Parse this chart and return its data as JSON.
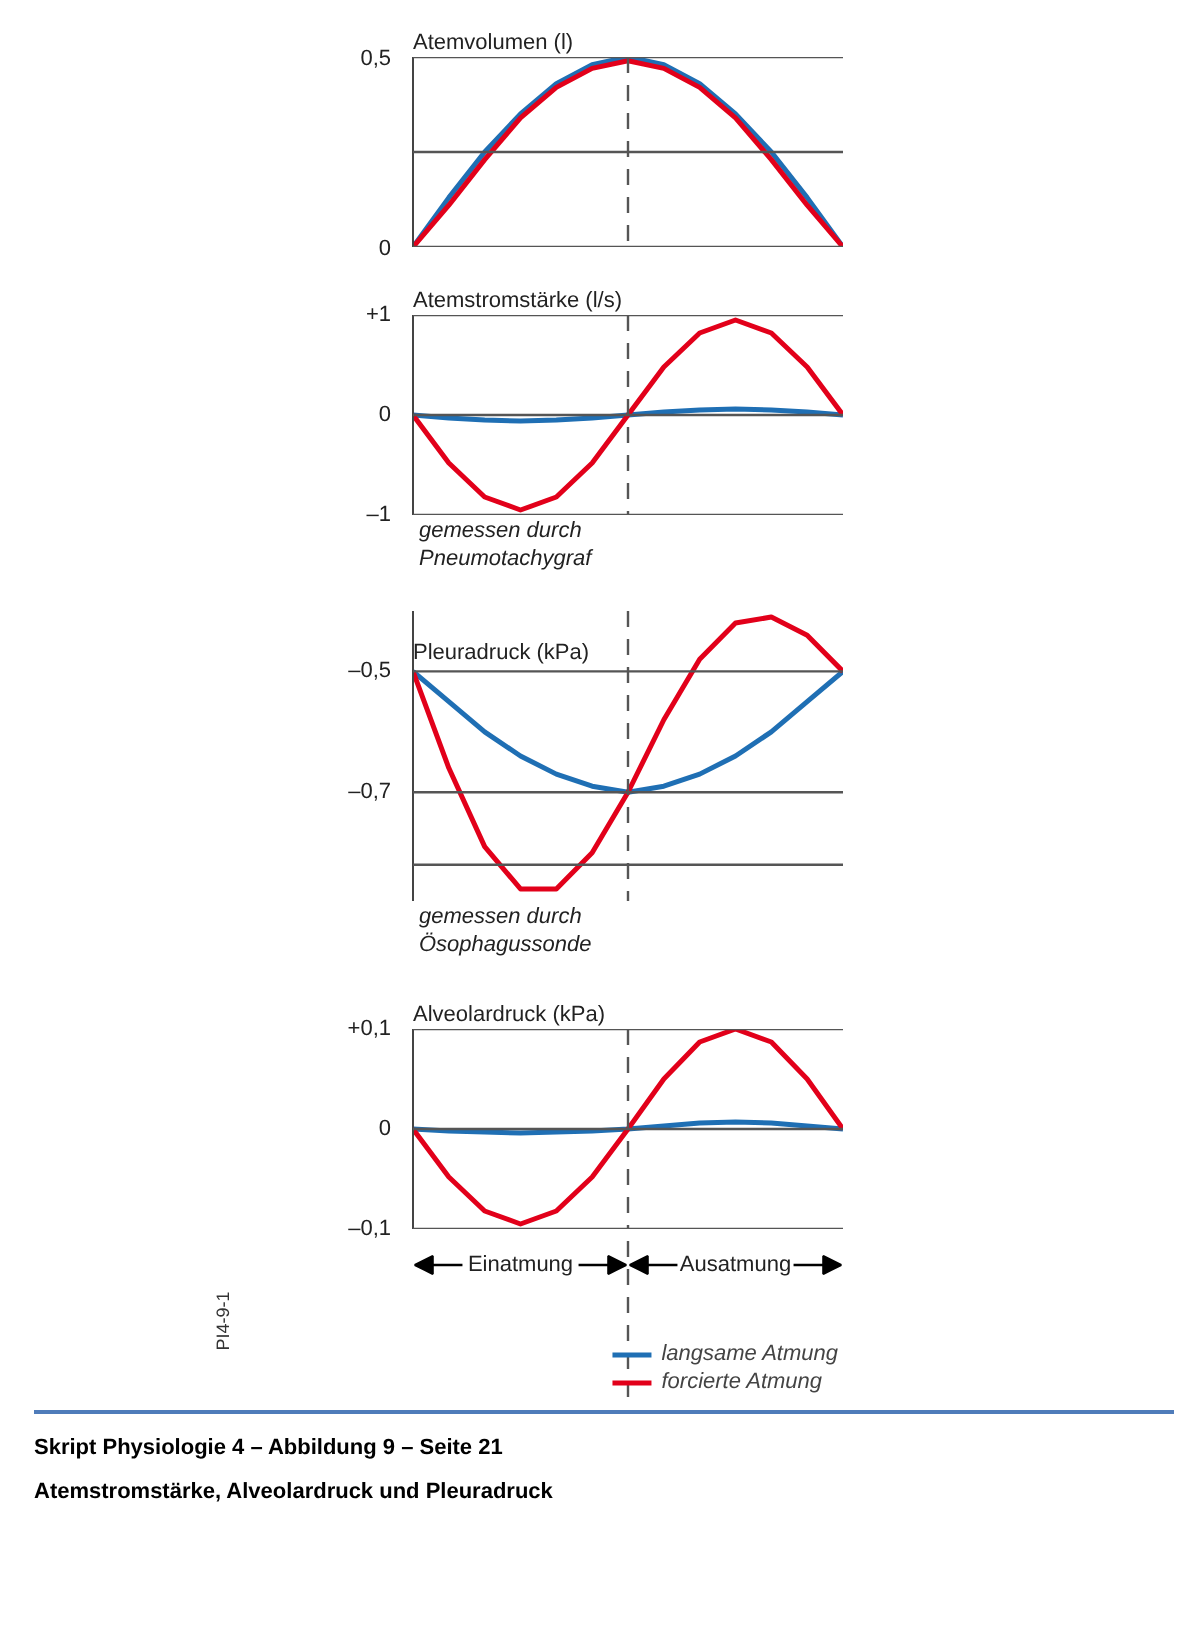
{
  "chart_data": [
    {
      "type": "line",
      "ylabel": "Atemvolumen (l)",
      "categories": [
        null,
        null,
        null,
        null,
        null,
        null,
        null,
        null,
        null,
        null,
        null,
        null,
        null
      ],
      "ylim": [
        0,
        0.5
      ],
      "yticks": [
        0,
        {
          "value": 0.5,
          "label": "0,5"
        }
      ],
      "grid": "y",
      "tick_labels": "y",
      "ref_lines": [
        {
          "axis": "y",
          "value": 0.25,
          "color": "#555555"
        }
      ],
      "series": [
        {
          "color": "#1f6fb4",
          "values": [
            0,
            0.13,
            0.25,
            0.35,
            0.43,
            0.48,
            0.5,
            0.48,
            0.43,
            0.35,
            0.25,
            0.13,
            0
          ]
        },
        {
          "color": "#e2001a",
          "values": [
            0,
            0.11,
            0.23,
            0.34,
            0.42,
            0.47,
            0.49,
            0.47,
            0.42,
            0.34,
            0.23,
            0.11,
            0
          ]
        }
      ]
    },
    {
      "type": "line",
      "ylabel": "Atemstromstärke (l/s)",
      "categories": [
        null,
        null,
        null,
        null,
        null,
        null,
        null,
        null,
        null,
        null,
        null,
        null,
        null
      ],
      "ylim": [
        -1,
        1
      ],
      "yticks": [
        {
          "value": -1,
          "label": "–1"
        },
        0,
        {
          "value": 1,
          "label": "+1"
        }
      ],
      "tick_labels": "y",
      "ref_lines": [
        {
          "axis": "y",
          "value": 1,
          "color": "#555555"
        },
        {
          "axis": "y",
          "value": 0,
          "color": "#555555"
        },
        {
          "axis": "y",
          "value": -1,
          "color": "#555555"
        }
      ],
      "series": [
        {
          "color": "#1f6fb4",
          "values": [
            0,
            -0.03,
            -0.05,
            -0.06,
            -0.05,
            -0.03,
            0,
            0.03,
            0.05,
            0.06,
            0.05,
            0.03,
            0
          ]
        },
        {
          "color": "#e2001a",
          "values": [
            0,
            -0.48,
            -0.82,
            -0.95,
            -0.82,
            -0.48,
            0,
            0.48,
            0.82,
            0.95,
            0.82,
            0.48,
            0
          ]
        }
      ],
      "annotations": [
        "gemessen durch",
        "Pneumotachygraf"
      ]
    },
    {
      "type": "line",
      "ylabel": "Pleuradruck (kPa)",
      "categories": [
        null,
        null,
        null,
        null,
        null,
        null,
        null,
        null,
        null,
        null,
        null,
        null,
        null
      ],
      "ylim": [
        -0.88,
        -0.4
      ],
      "yticks": [
        {
          "value": -0.82,
          "label": null
        },
        {
          "value": -0.7,
          "label": "–0,7"
        },
        {
          "value": -0.5,
          "label": "–0,5"
        }
      ],
      "grid": "y",
      "tick_labels": "y",
      "series": [
        {
          "color": "#1f6fb4",
          "values": [
            -0.5,
            -0.55,
            -0.6,
            -0.64,
            -0.67,
            -0.69,
            -0.7,
            -0.69,
            -0.67,
            -0.64,
            -0.6,
            -0.55,
            -0.5
          ]
        },
        {
          "color": "#e2001a",
          "values": [
            -0.5,
            -0.66,
            -0.79,
            -0.86,
            -0.86,
            -0.8,
            -0.7,
            -0.58,
            -0.48,
            -0.42,
            -0.41,
            -0.44,
            -0.5
          ]
        }
      ],
      "annotations": [
        "gemessen durch",
        "Ösophagussonde"
      ]
    },
    {
      "type": "line",
      "ylabel": "Alveolardruck (kPa)",
      "categories": [
        null,
        null,
        null,
        null,
        null,
        null,
        null,
        null,
        null,
        null,
        null,
        null,
        null
      ],
      "ylim": [
        -0.1,
        0.1
      ],
      "yticks": [
        {
          "value": -0.1,
          "label": "–0,1"
        },
        0,
        {
          "value": 0.1,
          "label": "+0,1"
        }
      ],
      "tick_labels": "y",
      "legend": "bottom right",
      "ref_lines": [
        {
          "axis": "y",
          "value": 0.1,
          "color": "#555555"
        },
        {
          "axis": "y",
          "value": 0,
          "color": "#555555"
        },
        {
          "axis": "y",
          "value": -0.1,
          "color": "#555555"
        }
      ],
      "series": [
        {
          "name": "langsame Atmung",
          "color": "#1f6fb4",
          "values": [
            0,
            -0.002,
            -0.003,
            -0.004,
            -0.003,
            -0.002,
            0,
            0.003,
            0.006,
            0.007,
            0.006,
            0.003,
            0
          ]
        },
        {
          "name": "forcierte Atmung",
          "color": "#e2001a",
          "values": [
            0,
            -0.048,
            -0.082,
            -0.095,
            -0.082,
            -0.048,
            0,
            0.05,
            0.087,
            0.1,
            0.087,
            0.05,
            0
          ]
        }
      ],
      "annotations": [
        "Einatmung",
        "Ausatmung",
        "Skript Physiologie 4 – Abbildung 9 – Seite 21",
        "Atemstromstärke, Alveolardruck und Pleuradruck",
        "PI4-9-1"
      ]
    }
  ]
}
